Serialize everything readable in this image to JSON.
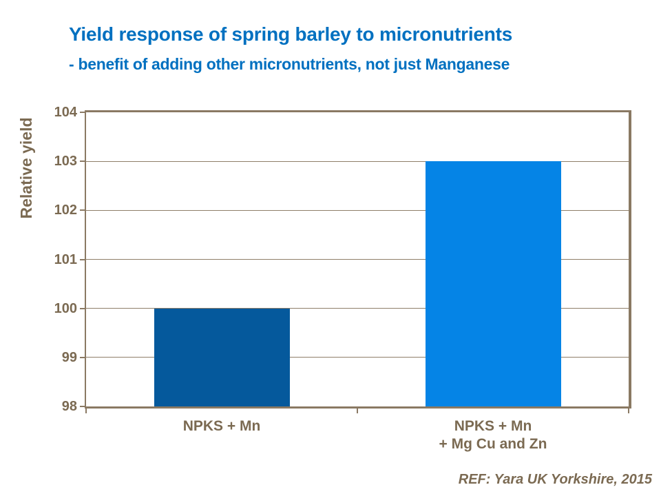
{
  "header": {
    "title": "Yield response of spring barley to micronutrients",
    "subtitle": "- benefit of adding other micronutrients, not just Manganese"
  },
  "footer": {
    "reference": "REF: Yara UK Yorkshire, 2015"
  },
  "colors": {
    "title_blue": "#0070C0",
    "label_brown": "#7B6A52",
    "axis_brown": "#8A7963",
    "gridline_brown": "#8E7E68"
  },
  "chart_data": {
    "type": "bar",
    "title": "Yield response of spring barley to micronutrients",
    "subtitle": "- benefit of adding other micronutrients, not just Manganese",
    "categories": [
      "NPKS + Mn",
      "NPKS + Mn\n+ Mg Cu and Zn"
    ],
    "values": [
      100,
      103
    ],
    "bar_colors": [
      "#05599C",
      "#0584E6"
    ],
    "xlabel": "",
    "ylabel": "Relative yield",
    "ylim": [
      98,
      104
    ],
    "yticks": [
      98,
      99,
      100,
      101,
      102,
      103,
      104
    ],
    "grid": true,
    "legend": false,
    "bar_width_fraction": 0.5,
    "annotation": "REF: Yara UK Yorkshire, 2015"
  }
}
